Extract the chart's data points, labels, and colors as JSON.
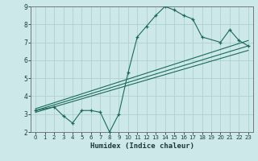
{
  "xlabel": "Humidex (Indice chaleur)",
  "bg_color": "#cce8e8",
  "grid_color": "#b0cfcf",
  "line_color": "#1a6b5a",
  "xlim": [
    -0.5,
    23.5
  ],
  "ylim": [
    2,
    9
  ],
  "xticks": [
    0,
    1,
    2,
    3,
    4,
    5,
    6,
    7,
    8,
    9,
    10,
    11,
    12,
    13,
    14,
    15,
    16,
    17,
    18,
    19,
    20,
    21,
    22,
    23
  ],
  "yticks": [
    2,
    3,
    4,
    5,
    6,
    7,
    8,
    9
  ],
  "main_x": [
    0,
    2,
    3,
    4,
    5,
    6,
    7,
    8,
    9,
    10,
    11,
    12,
    13,
    14,
    15,
    16,
    17,
    18,
    20,
    21,
    22,
    23
  ],
  "main_y": [
    3.2,
    3.4,
    2.9,
    2.5,
    3.2,
    3.2,
    3.1,
    2.0,
    3.0,
    5.3,
    7.3,
    7.9,
    8.5,
    9.0,
    8.8,
    8.5,
    8.3,
    7.3,
    7.0,
    7.7,
    7.1,
    6.8
  ],
  "trend1_x": [
    0,
    23
  ],
  "trend1_y": [
    3.2,
    6.8
  ],
  "trend2_x": [
    0,
    23
  ],
  "trend2_y": [
    3.3,
    7.1
  ],
  "trend3_x": [
    0,
    23
  ],
  "trend3_y": [
    3.1,
    6.55
  ]
}
